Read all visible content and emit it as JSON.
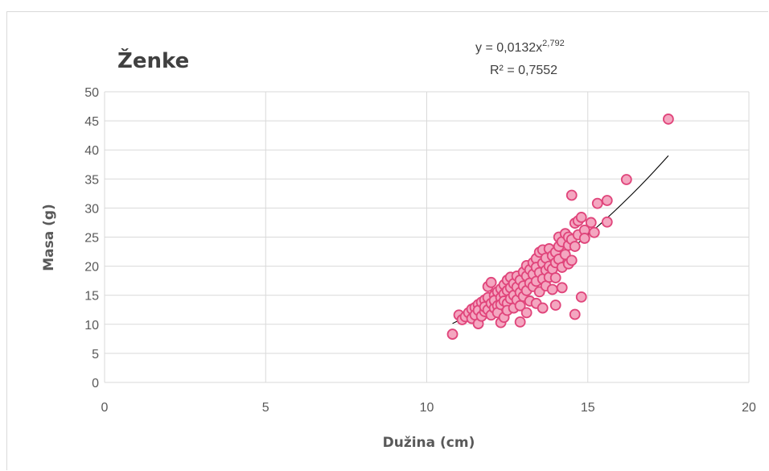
{
  "chart_data": {
    "type": "scatter",
    "title": "Ženke",
    "xlabel": "Dužina (cm)",
    "ylabel": "Masa (g)",
    "xlim": [
      0,
      20
    ],
    "ylim": [
      0,
      50
    ],
    "xticks": [
      0,
      5,
      10,
      15,
      20
    ],
    "yticks": [
      0,
      5,
      10,
      15,
      20,
      25,
      30,
      35,
      40,
      45,
      50
    ],
    "grid": true,
    "legend": "none",
    "marker_fill": "#f4a6c0",
    "marker_edge": "#e0457b",
    "trendline": {
      "type": "power",
      "a": 0.0132,
      "b": 2.792,
      "x_range": [
        10.8,
        17.5
      ],
      "equation_prefix": "y = 0,0132x",
      "equation_exponent": "2,792",
      "r2_label": "R² = 0,7552"
    },
    "points": [
      [
        10.8,
        8.3
      ],
      [
        11.0,
        11.6
      ],
      [
        11.1,
        10.8
      ],
      [
        11.2,
        11.3
      ],
      [
        11.3,
        12.0
      ],
      [
        11.4,
        12.6
      ],
      [
        11.4,
        11.0
      ],
      [
        11.5,
        12.9
      ],
      [
        11.5,
        11.6
      ],
      [
        11.6,
        10.1
      ],
      [
        11.6,
        13.4
      ],
      [
        11.6,
        12.4
      ],
      [
        11.7,
        11.4
      ],
      [
        11.7,
        13.8
      ],
      [
        11.8,
        12.2
      ],
      [
        11.8,
        14.2
      ],
      [
        11.8,
        13.0
      ],
      [
        11.9,
        12.5
      ],
      [
        11.9,
        16.5
      ],
      [
        11.9,
        14.6
      ],
      [
        12.0,
        13.6
      ],
      [
        12.0,
        11.6
      ],
      [
        12.0,
        17.2
      ],
      [
        12.1,
        15.0
      ],
      [
        12.1,
        12.8
      ],
      [
        12.1,
        14.1
      ],
      [
        12.2,
        13.2
      ],
      [
        12.2,
        15.6
      ],
      [
        12.2,
        12.0
      ],
      [
        12.3,
        14.6
      ],
      [
        12.3,
        16.1
      ],
      [
        12.3,
        10.3
      ],
      [
        12.3,
        13.4
      ],
      [
        12.4,
        15.2
      ],
      [
        12.4,
        11.2
      ],
      [
        12.4,
        16.8
      ],
      [
        12.4,
        14.0
      ],
      [
        12.5,
        17.6
      ],
      [
        12.5,
        13.6
      ],
      [
        12.5,
        15.8
      ],
      [
        12.5,
        12.4
      ],
      [
        12.6,
        16.3
      ],
      [
        12.6,
        14.4
      ],
      [
        12.6,
        18.1
      ],
      [
        12.7,
        15.0
      ],
      [
        12.7,
        12.8
      ],
      [
        12.7,
        17.0
      ],
      [
        12.8,
        16.4
      ],
      [
        12.8,
        14.2
      ],
      [
        12.8,
        18.3
      ],
      [
        12.9,
        10.4
      ],
      [
        12.9,
        15.5
      ],
      [
        12.9,
        17.6
      ],
      [
        12.9,
        13.2
      ],
      [
        13.0,
        19.0
      ],
      [
        13.0,
        16.6
      ],
      [
        13.0,
        14.8
      ],
      [
        13.1,
        12.0
      ],
      [
        13.1,
        18.3
      ],
      [
        13.1,
        20.1
      ],
      [
        13.1,
        15.8
      ],
      [
        13.2,
        17.1
      ],
      [
        13.2,
        19.4
      ],
      [
        13.2,
        14.0
      ],
      [
        13.3,
        20.6
      ],
      [
        13.3,
        16.5
      ],
      [
        13.3,
        18.6
      ],
      [
        13.4,
        21.3
      ],
      [
        13.4,
        13.6
      ],
      [
        13.4,
        17.4
      ],
      [
        13.4,
        19.8
      ],
      [
        13.5,
        22.4
      ],
      [
        13.5,
        15.6
      ],
      [
        13.5,
        18.9
      ],
      [
        13.6,
        20.5
      ],
      [
        13.6,
        12.8
      ],
      [
        13.6,
        17.8
      ],
      [
        13.6,
        22.8
      ],
      [
        13.7,
        19.3
      ],
      [
        13.7,
        16.6
      ],
      [
        13.7,
        21.4
      ],
      [
        13.8,
        20.0
      ],
      [
        13.8,
        18.1
      ],
      [
        13.8,
        23.0
      ],
      [
        13.9,
        21.8
      ],
      [
        13.9,
        16.0
      ],
      [
        13.9,
        19.5
      ],
      [
        14.0,
        13.3
      ],
      [
        14.0,
        22.4
      ],
      [
        14.0,
        20.6
      ],
      [
        14.0,
        18.0
      ],
      [
        14.1,
        25.0
      ],
      [
        14.1,
        21.2
      ],
      [
        14.1,
        23.4
      ],
      [
        14.2,
        16.3
      ],
      [
        14.2,
        24.2
      ],
      [
        14.2,
        19.8
      ],
      [
        14.3,
        25.6
      ],
      [
        14.3,
        22.0
      ],
      [
        14.4,
        23.6
      ],
      [
        14.4,
        20.4
      ],
      [
        14.4,
        25.0
      ],
      [
        14.5,
        32.2
      ],
      [
        14.5,
        24.6
      ],
      [
        14.5,
        21.0
      ],
      [
        14.6,
        27.4
      ],
      [
        14.6,
        11.7
      ],
      [
        14.6,
        23.4
      ],
      [
        14.7,
        27.8
      ],
      [
        14.7,
        25.4
      ],
      [
        14.8,
        28.4
      ],
      [
        14.8,
        14.7
      ],
      [
        14.9,
        26.2
      ],
      [
        14.9,
        24.8
      ],
      [
        15.1,
        27.5
      ],
      [
        15.2,
        25.8
      ],
      [
        15.3,
        30.8
      ],
      [
        15.6,
        31.3
      ],
      [
        15.6,
        27.6
      ],
      [
        16.2,
        34.9
      ],
      [
        17.5,
        45.3
      ]
    ]
  }
}
